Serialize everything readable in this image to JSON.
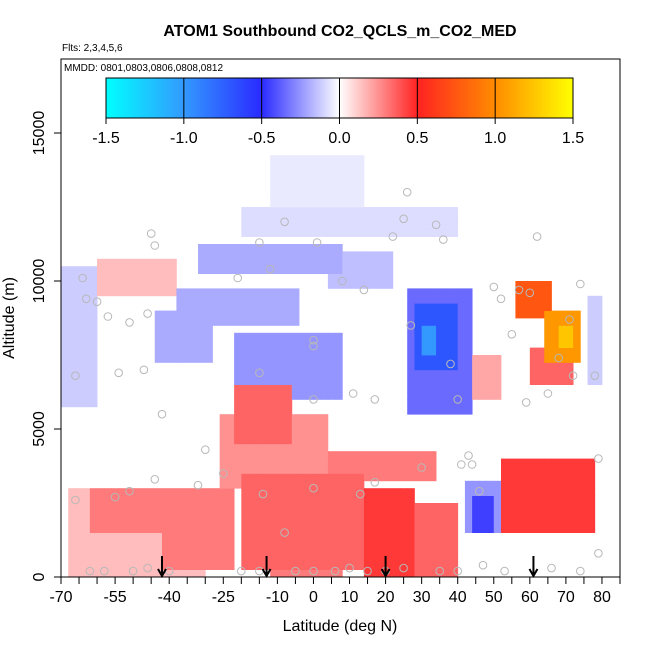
{
  "chart_data": {
    "type": "heatmap",
    "title": "ATOM1 Southbound CO2_QCLS_m_CO2_MED",
    "subtitle": "Flts: 2,3,4,5,6",
    "annotation": "MMDD: 0801,0803,0806,0808,0812",
    "xlabel": "Latitude (deg N)",
    "ylabel": "Altitude (m)",
    "xlim": [
      -70,
      85
    ],
    "ylim": [
      0,
      17500
    ],
    "x_tick_values": [
      -70,
      -65,
      -60,
      -55,
      -50,
      -45,
      -40,
      -35,
      -30,
      -25,
      -20,
      -15,
      -10,
      -5,
      0,
      5,
      10,
      15,
      20,
      25,
      30,
      35,
      40,
      45,
      50,
      55,
      60,
      65,
      70,
      75,
      80,
      85
    ],
    "x_tick_labels": [
      "-70",
      "-55",
      "-40",
      "-25",
      "-10",
      "0",
      "10",
      "20",
      "30",
      "40",
      "50",
      "60",
      "70",
      "80"
    ],
    "x_tick_label_values": [
      -70,
      -55,
      -40,
      -25,
      -10,
      0,
      10,
      20,
      30,
      40,
      50,
      60,
      70,
      80
    ],
    "y_ticks": [
      0,
      5000,
      10000,
      15000
    ],
    "y_tick_labels": [
      "0",
      "5000",
      "10000",
      "15000"
    ],
    "colorbar": {
      "range": [
        -1.5,
        1.5
      ],
      "ticks": [
        -1.5,
        -1.0,
        -0.5,
        0.0,
        0.5,
        1.0,
        1.5
      ],
      "tick_labels": [
        "-1.5",
        "-1.0",
        "-0.5",
        "0.0",
        "0.5",
        "1.0",
        "1.5"
      ],
      "colors": [
        "#00ffff",
        "#3399ff",
        "#2a2aff",
        "#ffffff",
        "#ff2222",
        "#ff8c00",
        "#ffff00"
      ]
    },
    "grid": false,
    "cell_width_deg": 2,
    "cell_height_m": 250,
    "value_field": [
      {
        "lat": [
          -68,
          -30
        ],
        "alt": [
          0,
          3000
        ],
        "value": 0.15
      },
      {
        "lat": [
          -62,
          -42
        ],
        "alt": [
          1500,
          3000
        ],
        "value": 0.3
      },
      {
        "lat": [
          -42,
          -22
        ],
        "alt": [
          300,
          3000
        ],
        "value": 0.3
      },
      {
        "lat": [
          -26,
          4
        ],
        "alt": [
          3000,
          5500
        ],
        "value": 0.25
      },
      {
        "lat": [
          -22,
          -6
        ],
        "alt": [
          4500,
          6500
        ],
        "value": 0.35
      },
      {
        "lat": [
          -20,
          14
        ],
        "alt": [
          300,
          3500
        ],
        "value": 0.35
      },
      {
        "lat": [
          -12,
          8
        ],
        "alt": [
          0,
          1500
        ],
        "value": 0.3
      },
      {
        "lat": [
          4,
          34
        ],
        "alt": [
          3200,
          4200
        ],
        "value": 0.3
      },
      {
        "lat": [
          14,
          28
        ],
        "alt": [
          0,
          3000
        ],
        "value": 0.45
      },
      {
        "lat": [
          28,
          40
        ],
        "alt": [
          0,
          2500
        ],
        "value": 0.35
      },
      {
        "lat": [
          52,
          78
        ],
        "alt": [
          1500,
          4000
        ],
        "value": 0.45
      },
      {
        "lat": [
          60,
          72
        ],
        "alt": [
          6500,
          7800
        ],
        "value": 0.35
      },
      {
        "lat": [
          56,
          66
        ],
        "alt": [
          8800,
          10000
        ],
        "value": 0.75
      },
      {
        "lat": [
          64,
          74
        ],
        "alt": [
          7200,
          9000
        ],
        "value": 1.05
      },
      {
        "lat": [
          68,
          72
        ],
        "alt": [
          7800,
          8500
        ],
        "value": 1.25
      },
      {
        "lat": [
          38,
          52
        ],
        "alt": [
          6000,
          7500
        ],
        "value": 0.2
      },
      {
        "lat": [
          -60,
          -38
        ],
        "alt": [
          9500,
          10800
        ],
        "value": 0.15
      },
      {
        "lat": [
          -44,
          -28
        ],
        "alt": [
          7200,
          9000
        ],
        "value": -0.2
      },
      {
        "lat": [
          -22,
          8
        ],
        "alt": [
          6000,
          8200
        ],
        "value": -0.25
      },
      {
        "lat": [
          -38,
          -4
        ],
        "alt": [
          8500,
          9800
        ],
        "value": -0.2
      },
      {
        "lat": [
          -32,
          8
        ],
        "alt": [
          10200,
          11200
        ],
        "value": -0.2
      },
      {
        "lat": [
          4,
          22
        ],
        "alt": [
          9800,
          11000
        ],
        "value": -0.15
      },
      {
        "lat": [
          -20,
          40
        ],
        "alt": [
          11500,
          12500
        ],
        "value": -0.08
      },
      {
        "lat": [
          26,
          44
        ],
        "alt": [
          5500,
          9800
        ],
        "value": -0.35
      },
      {
        "lat": [
          28,
          40
        ],
        "alt": [
          7000,
          9200
        ],
        "value": -0.7
      },
      {
        "lat": [
          30,
          34
        ],
        "alt": [
          7600,
          8600
        ],
        "value": -1.0
      },
      {
        "lat": [
          42,
          52
        ],
        "alt": [
          1500,
          3200
        ],
        "value": -0.25
      },
      {
        "lat": [
          44,
          50
        ],
        "alt": [
          1600,
          2800
        ],
        "value": -0.45
      },
      {
        "lat": [
          -70,
          -60
        ],
        "alt": [
          5800,
          10500
        ],
        "value": -0.12
      },
      {
        "lat": [
          76,
          80
        ],
        "alt": [
          6500,
          9500
        ],
        "value": -0.12
      },
      {
        "lat": [
          -12,
          14
        ],
        "alt": [
          12500,
          14200
        ],
        "value": -0.05
      }
    ],
    "observations": [
      [
        -66,
        2600
      ],
      [
        -64,
        10100
      ],
      [
        -63,
        9400
      ],
      [
        -60,
        9300
      ],
      [
        -57,
        8800
      ],
      [
        -55,
        2700
      ],
      [
        -54,
        6900
      ],
      [
        -51,
        2900
      ],
      [
        -51,
        8600
      ],
      [
        -47,
        7000
      ],
      [
        -46,
        8900
      ],
      [
        -45,
        11600
      ],
      [
        -44,
        11200
      ],
      [
        -44,
        3300
      ],
      [
        -42,
        5500
      ],
      [
        -46,
        300
      ],
      [
        -58,
        200
      ],
      [
        -50,
        200
      ],
      [
        -32,
        3100
      ],
      [
        -30,
        4300
      ],
      [
        -25,
        3500
      ],
      [
        -21,
        10100
      ],
      [
        -12,
        10400
      ],
      [
        -15,
        11300
      ],
      [
        -8,
        12000
      ],
      [
        -15,
        6900
      ],
      [
        -14,
        2800
      ],
      [
        -8,
        1500
      ],
      [
        0,
        8000
      ],
      [
        0,
        7800
      ],
      [
        0,
        6000
      ],
      [
        0,
        3000
      ],
      [
        1,
        11300
      ],
      [
        6,
        200
      ],
      [
        8,
        10000
      ],
      [
        11,
        6200
      ],
      [
        13,
        2800
      ],
      [
        14,
        9700
      ],
      [
        17,
        6000
      ],
      [
        17,
        3200
      ],
      [
        22,
        11500
      ],
      [
        25,
        12100
      ],
      [
        26,
        13000
      ],
      [
        27,
        8500
      ],
      [
        30,
        3700
      ],
      [
        34,
        11900
      ],
      [
        36,
        11400
      ],
      [
        38,
        7200
      ],
      [
        40,
        6000
      ],
      [
        41,
        3800
      ],
      [
        43,
        4100
      ],
      [
        44,
        3800
      ],
      [
        46,
        2900
      ],
      [
        50,
        9800
      ],
      [
        52,
        9400
      ],
      [
        55,
        8200
      ],
      [
        57,
        9700
      ],
      [
        59,
        5900
      ],
      [
        60,
        9600
      ],
      [
        62,
        11500
      ],
      [
        65,
        6200
      ],
      [
        68,
        7400
      ],
      [
        71,
        8700
      ],
      [
        72,
        6800
      ],
      [
        74,
        9900
      ],
      [
        78,
        6800
      ],
      [
        79,
        4000
      ],
      [
        79,
        800
      ],
      [
        -66,
        6800
      ],
      [
        -62,
        200
      ],
      [
        -40,
        200
      ],
      [
        -20,
        200
      ],
      [
        -15,
        200
      ],
      [
        -5,
        200
      ],
      [
        0,
        200
      ],
      [
        10,
        300
      ],
      [
        15,
        200
      ],
      [
        20,
        200
      ],
      [
        25,
        300
      ],
      [
        35,
        200
      ],
      [
        40,
        200
      ],
      [
        47,
        400
      ],
      [
        53,
        200
      ],
      [
        66,
        300
      ],
      [
        74,
        200
      ]
    ],
    "arrows_at_latitude": [
      -42,
      -13,
      20,
      61
    ]
  }
}
